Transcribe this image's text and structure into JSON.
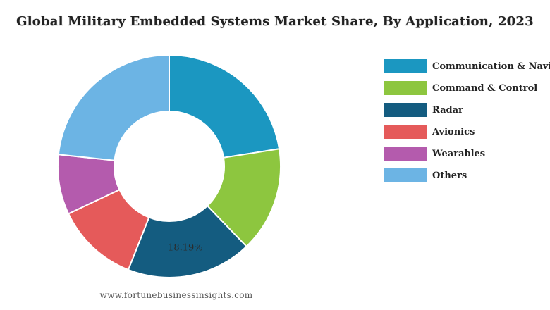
{
  "chart_data": {
    "type": "donut",
    "title": "Global Military Embedded Systems Market Share, By Application, 2023",
    "categories": [
      "Communication & Navigation",
      "Command & Control",
      "Radar",
      "Avionics",
      "Wearables",
      "Others"
    ],
    "values": [
      22.5,
      15.3,
      18.19,
      12.0,
      8.7,
      23.31
    ],
    "colors": [
      "#1b97c1",
      "#8dc63f",
      "#145c80",
      "#e55a5a",
      "#b45bad",
      "#6cb4e4"
    ],
    "data_labels": [
      "",
      "",
      "18.19%",
      "",
      "",
      ""
    ],
    "legend_position": "right"
  },
  "legend": {
    "items": [
      {
        "label": "Communication & Navigation"
      },
      {
        "label": "Command & Control"
      },
      {
        "label": "Radar"
      },
      {
        "label": "Avionics"
      },
      {
        "label": "Wearables"
      },
      {
        "label": "Others"
      }
    ]
  },
  "source": "www.fortunebusinessinsights.com"
}
